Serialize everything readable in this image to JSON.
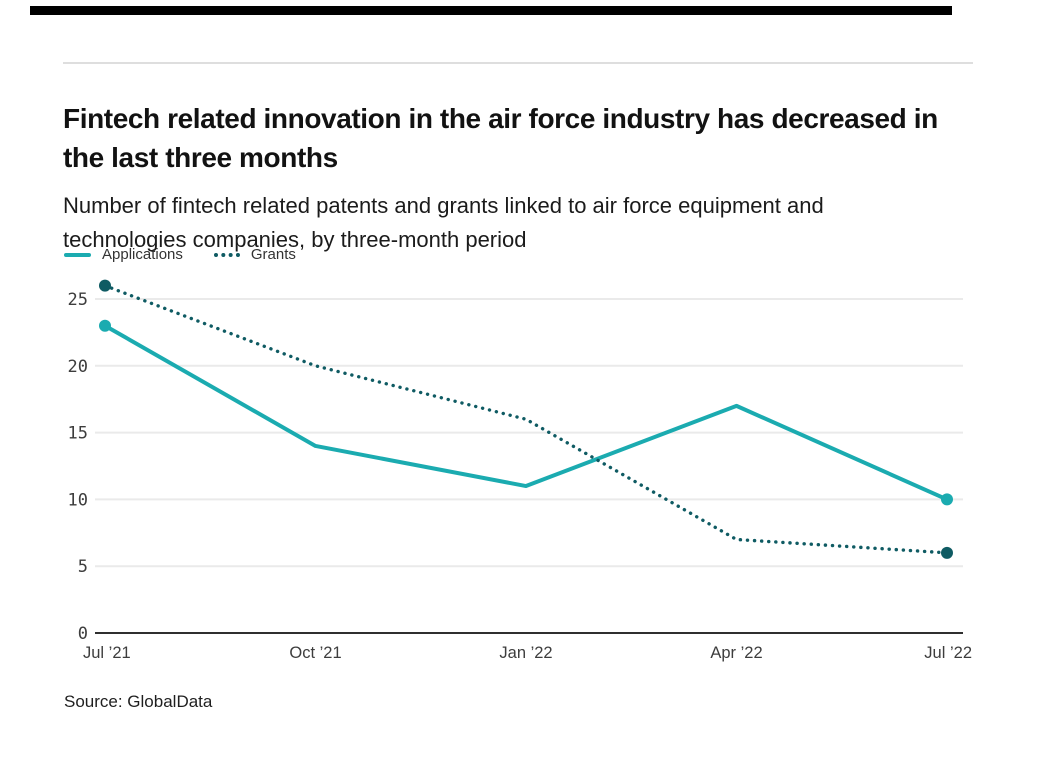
{
  "header": {
    "title": "Fintech related innovation in the air force industry has decreased in the last three months",
    "subtitle": "Number of fintech related patents and grants linked to air force equipment and technologies companies, by three-month period"
  },
  "legend": {
    "applications_label": "Applications",
    "grants_label": "Grants"
  },
  "source": "Source: GlobalData",
  "colors": {
    "applications": "#1BABB0",
    "grants": "#0F5B63",
    "gridline": "#EAEAEA",
    "axis_zero_line": "#2F2F2F",
    "top_bar": "#000000"
  },
  "chart_data": {
    "type": "line",
    "categories": [
      "Jul ’21",
      "Oct ’21",
      "Jan ’22",
      "Apr ’22",
      "Jul ’22"
    ],
    "series": [
      {
        "name": "Applications",
        "values": [
          23,
          14,
          11,
          17,
          10
        ],
        "color": "#1BABB0",
        "style": "solid"
      },
      {
        "name": "Grants",
        "values": [
          26,
          20,
          16,
          7,
          6
        ],
        "color": "#0F5B63",
        "style": "dotted"
      }
    ],
    "title": "Fintech related innovation in the air force industry has decreased in the last three months",
    "subtitle": "Number of fintech related patents and grants linked to air force equipment and technologies companies, by three-month period",
    "xlabel": "",
    "ylabel": "",
    "y_ticks": [
      0,
      5,
      10,
      15,
      20,
      25
    ],
    "ylim": [
      0,
      26
    ],
    "grid": true,
    "legend_position": "top-left",
    "markers": "first-and-last-points-only"
  }
}
